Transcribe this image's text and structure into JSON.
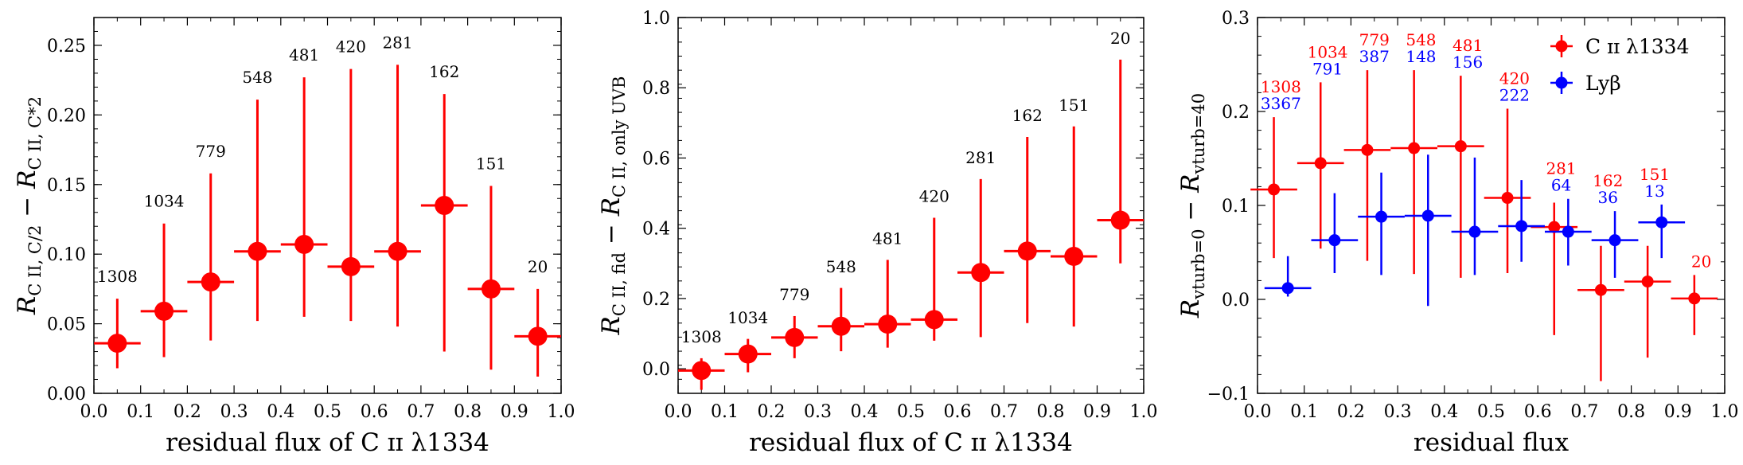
{
  "chart_data": [
    {
      "type": "scatter",
      "xlabel": "residual flux of C ɪɪ λ1334",
      "ylabel": "R_{C II, C/2} − R_{C II, C*2}",
      "ylabel_parts": {
        "main": "R",
        "sub1": "C II, C/2",
        "minus": "−",
        "sub2": "C II, C*2"
      },
      "xlim": [
        0,
        1.0
      ],
      "ylim": [
        0,
        0.27
      ],
      "xticks": [
        "0.0",
        "0.1",
        "0.2",
        "0.3",
        "0.4",
        "0.5",
        "0.6",
        "0.7",
        "0.8",
        "0.9",
        "1.0"
      ],
      "yticks": [
        "0.00",
        "0.05",
        "0.10",
        "0.15",
        "0.20",
        "0.25"
      ],
      "ytick_values": [
        0,
        0.05,
        0.1,
        0.15,
        0.2,
        0.25
      ],
      "series": [
        {
          "color": "#ff0000",
          "x": [
            0.05,
            0.15,
            0.25,
            0.35,
            0.45,
            0.55,
            0.65,
            0.75,
            0.85,
            0.95
          ],
          "y": [
            0.036,
            0.059,
            0.08,
            0.102,
            0.107,
            0.091,
            0.102,
            0.135,
            0.075,
            0.041
          ],
          "yerr_low": [
            0.018,
            0.026,
            0.038,
            0.052,
            0.055,
            0.052,
            0.048,
            0.03,
            0.017,
            0.012
          ],
          "yerr_high": [
            0.068,
            0.122,
            0.158,
            0.211,
            0.227,
            0.233,
            0.236,
            0.215,
            0.149,
            0.075
          ],
          "xerr": 0.05,
          "counts": [
            "1308",
            "1034",
            "779",
            "548",
            "481",
            "420",
            "281",
            "162",
            "151",
            "20"
          ],
          "count_offset": [
            0.012,
            0.012,
            0.012,
            0.012,
            0.012,
            0.012,
            0.012,
            0.012,
            0.012,
            0.012
          ]
        }
      ]
    },
    {
      "type": "scatter",
      "xlabel": "residual flux of C ɪɪ λ1334",
      "ylabel": "R_{C II, fid} − R_{C II, only UVB}",
      "ylabel_parts": {
        "main": "R",
        "sub1": "C II, fid",
        "minus": "−",
        "sub2": "C II, only UVB"
      },
      "xlim": [
        0,
        1.0
      ],
      "ylim": [
        -0.07,
        1.0
      ],
      "xticks": [
        "0.0",
        "0.1",
        "0.2",
        "0.3",
        "0.4",
        "0.5",
        "0.6",
        "0.7",
        "0.8",
        "0.9",
        "1.0"
      ],
      "yticks": [
        "0.0",
        "0.2",
        "0.4",
        "0.6",
        "0.8",
        "1.0"
      ],
      "ytick_values": [
        0,
        0.2,
        0.4,
        0.6,
        0.8,
        1.0
      ],
      "series": [
        {
          "color": "#ff0000",
          "x": [
            0.05,
            0.15,
            0.25,
            0.35,
            0.45,
            0.55,
            0.65,
            0.75,
            0.85,
            0.95
          ],
          "y": [
            -0.005,
            0.042,
            0.089,
            0.121,
            0.127,
            0.14,
            0.274,
            0.335,
            0.32,
            0.423
          ],
          "yerr_low": [
            -0.06,
            -0.01,
            0.03,
            0.05,
            0.06,
            0.08,
            0.09,
            0.13,
            0.12,
            0.3
          ],
          "yerr_high": [
            0.03,
            0.085,
            0.15,
            0.23,
            0.31,
            0.43,
            0.54,
            0.66,
            0.69,
            0.88
          ],
          "xerr": 0.05,
          "counts": [
            "1308",
            "1034",
            "779",
            "548",
            "481",
            "420",
            "281",
            "162",
            "151",
            "20"
          ],
          "count_offset": [
            0.045,
            0.045,
            0.045,
            0.045,
            0.045,
            0.045,
            0.045,
            0.045,
            0.045,
            0.045
          ]
        }
      ]
    },
    {
      "type": "scatter",
      "xlabel": "residual flux",
      "ylabel": "R_{vturb=0} − R_{vturb=40}",
      "ylabel_parts": {
        "main": "R",
        "sub1": "vturb=0",
        "minus": "−",
        "sub2": "vturb=40"
      },
      "xlim": [
        0,
        1.0
      ],
      "ylim": [
        -0.1,
        0.3
      ],
      "xticks": [
        "0.0",
        "0.1",
        "0.2",
        "0.3",
        "0.4",
        "0.5",
        "0.6",
        "0.7",
        "0.8",
        "0.9",
        "1.0"
      ],
      "yticks": [
        "−0.1",
        "0.0",
        "0.1",
        "0.2",
        "0.3"
      ],
      "ytick_values": [
        -0.1,
        0,
        0.1,
        0.2,
        0.3
      ],
      "legend": {
        "position": "top-right",
        "entries": [
          "C ɪɪ λ1334",
          "Lyβ"
        ]
      },
      "series": [
        {
          "name": "C ɪɪ λ1334",
          "color": "#ff0000",
          "x": [
            0.035,
            0.135,
            0.235,
            0.335,
            0.435,
            0.535,
            0.635,
            0.735,
            0.835,
            0.935
          ],
          "y": [
            0.117,
            0.145,
            0.159,
            0.161,
            0.163,
            0.108,
            0.077,
            0.01,
            0.019,
            0.001
          ],
          "yerr_low": [
            0.044,
            0.054,
            0.041,
            0.027,
            0.023,
            0.028,
            -0.038,
            -0.087,
            -0.062,
            -0.038
          ],
          "yerr_high": [
            0.194,
            0.231,
            0.244,
            0.244,
            0.238,
            0.203,
            0.103,
            0.057,
            0.057,
            0.026
          ],
          "xerr": 0.05,
          "counts": [
            "1308",
            "1034",
            "779",
            "548",
            "481",
            "420",
            "281",
            "162",
            "151",
            "20"
          ]
        },
        {
          "name": "Lyβ",
          "color": "#0000ff",
          "x": [
            0.065,
            0.165,
            0.265,
            0.365,
            0.465,
            0.565,
            0.665,
            0.765,
            0.865
          ],
          "y": [
            0.012,
            0.063,
            0.088,
            0.089,
            0.072,
            0.078,
            0.072,
            0.063,
            0.082
          ],
          "yerr_low": [
            0.003,
            0.028,
            0.026,
            -0.007,
            0.026,
            0.04,
            0.036,
            0.023,
            0.044
          ],
          "yerr_high": [
            0.046,
            0.113,
            0.135,
            0.154,
            0.151,
            0.127,
            0.107,
            0.094,
            0.101
          ],
          "xerr": 0.05,
          "counts": [
            "3367",
            "791",
            "387",
            "148",
            "156",
            "222",
            "64",
            "36",
            "13"
          ]
        }
      ]
    }
  ]
}
